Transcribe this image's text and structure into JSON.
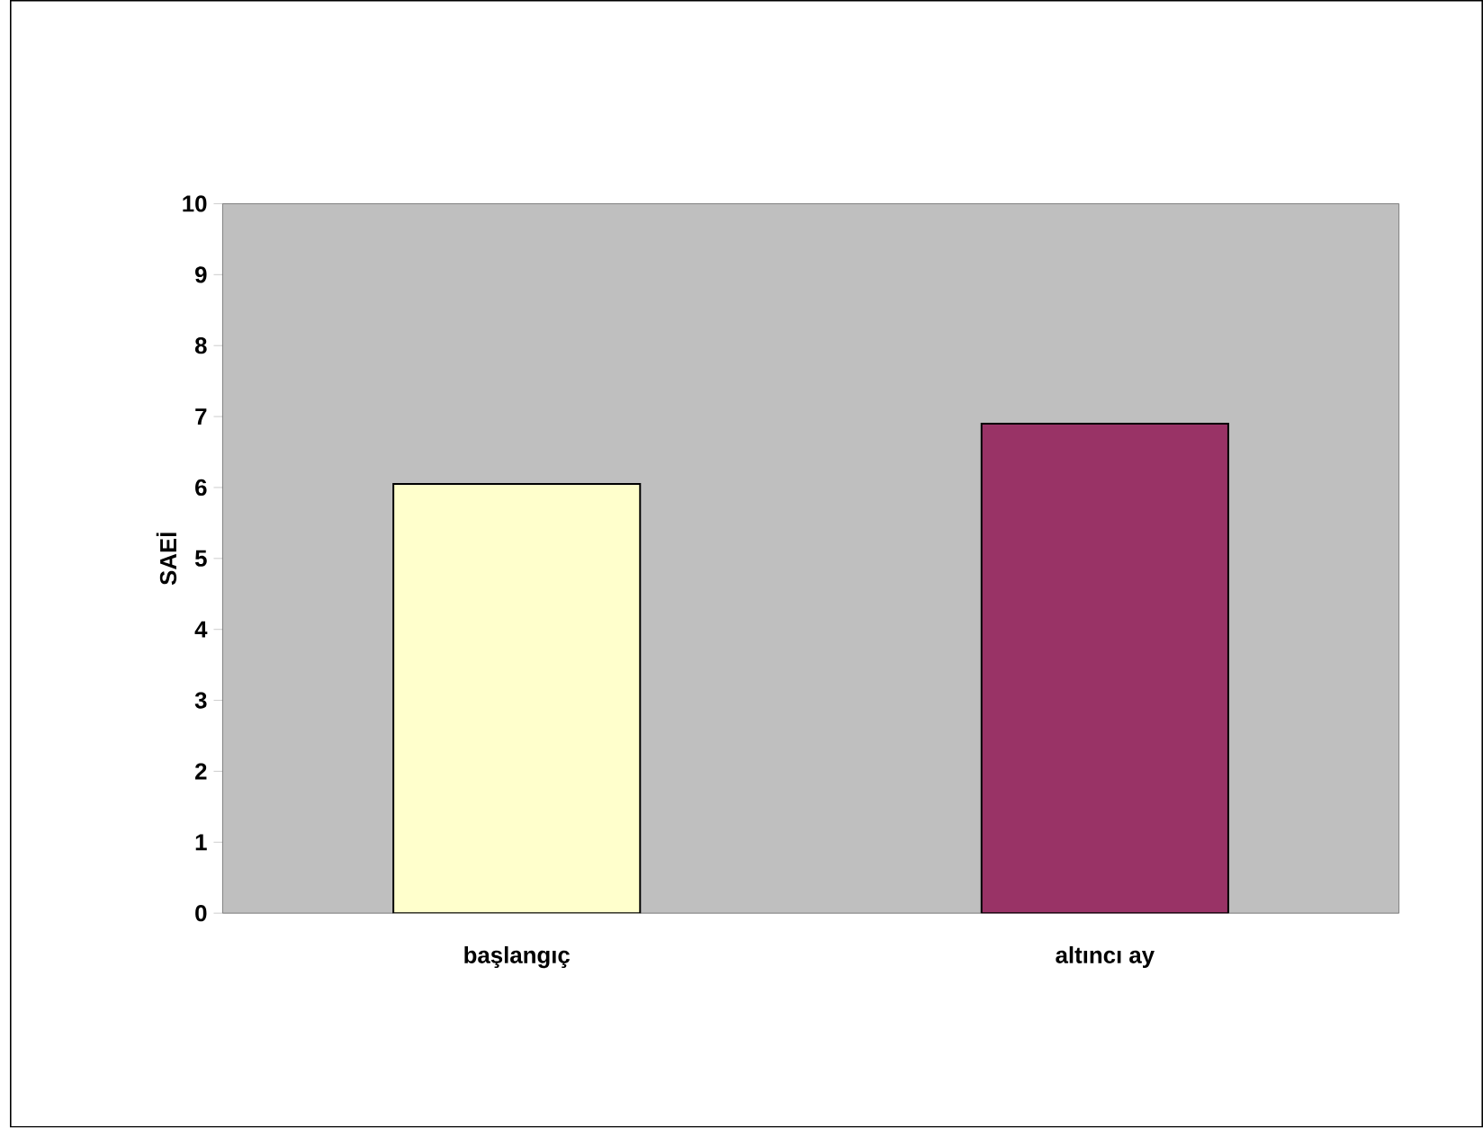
{
  "chart_data": {
    "type": "bar",
    "ylabel": "SAEİ",
    "categories": [
      "başlangıç",
      "altıncı ay"
    ],
    "values": [
      6.05,
      6.9
    ],
    "colors": [
      "#ffffcc",
      "#993366"
    ],
    "ylim": [
      0,
      10
    ],
    "yticks": [
      0,
      1,
      2,
      3,
      4,
      5,
      6,
      7,
      8,
      9,
      10
    ]
  }
}
